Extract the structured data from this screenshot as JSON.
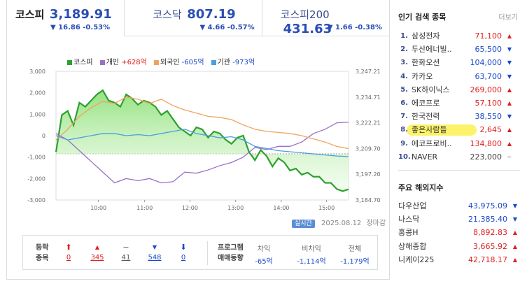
{
  "tabs": [
    {
      "name": "코스피",
      "value": "3,189.91",
      "change": "▼ 16.86 -0.53%",
      "active": true
    },
    {
      "name": "코스닥",
      "value": "807.19",
      "change": "▼ 4.66 -0.57%",
      "active": false
    },
    {
      "name": "코스피200",
      "value": "431.63",
      "change": "▼ 1.66 -0.38%",
      "active": false
    }
  ],
  "legend": {
    "kospi": "코스피",
    "individual_label": "개인",
    "individual_value": "+628억",
    "foreign_label": "외국인",
    "foreign_value": "-605억",
    "institution_label": "기관",
    "institution_value": "-973억"
  },
  "colors": {
    "kospi": "#2da12d",
    "individual": "#9a70c9",
    "foreign": "#f0a35e",
    "institution": "#4a9fe0",
    "up": "#e02020",
    "down": "#1a49c9"
  },
  "chart_data": {
    "type": "line",
    "x_ticks": [
      "10:00",
      "11:00",
      "12:00",
      "13:00",
      "14:00",
      "15:00"
    ],
    "left_ticks": [
      "3,000",
      "2,000",
      "1,000",
      "0",
      "-1,000",
      "-2,000",
      "-3,000"
    ],
    "right_ticks": [
      "3,247.21",
      "3,234.71",
      "3,222.21",
      "3,209.70",
      "3,197.20",
      "3,184.70"
    ],
    "ylim_left": [
      -3000,
      3000
    ],
    "ylim_right": [
      3184.7,
      3247.21
    ],
    "series": [
      {
        "name": "코스피",
        "axis": "right",
        "t": [
          0,
          2,
          4,
          6,
          8,
          10,
          12,
          14,
          16,
          18,
          20,
          22,
          24,
          26,
          28,
          30,
          32,
          34,
          36,
          38,
          40,
          42,
          44,
          46,
          48,
          50,
          52,
          54,
          56,
          58,
          60,
          62,
          64,
          66,
          68,
          70,
          72,
          74,
          76,
          78,
          80,
          82,
          84,
          86,
          88,
          90,
          92,
          94,
          96,
          98,
          100
        ],
        "values": [
          3208,
          3226,
          3228,
          3221,
          3232,
          3230,
          3233,
          3236,
          3238,
          3233,
          3232,
          3230,
          3236,
          3234,
          3231,
          3233,
          3232,
          3230,
          3226,
          3228,
          3224,
          3220,
          3218,
          3216,
          3220,
          3219,
          3215,
          3218,
          3217,
          3214,
          3212,
          3215,
          3216,
          3208,
          3204,
          3209,
          3206,
          3201,
          3205,
          3203,
          3199,
          3200,
          3197,
          3198,
          3196,
          3196,
          3193,
          3193,
          3190,
          3189,
          3189.91
        ]
      },
      {
        "name": "개인",
        "axis": "left",
        "t": [
          0,
          4,
          8,
          12,
          16,
          20,
          24,
          28,
          32,
          36,
          40,
          44,
          48,
          52,
          56,
          60,
          64,
          68,
          72,
          76,
          80,
          84,
          88,
          92,
          96,
          100
        ],
        "values": [
          100,
          -200,
          -700,
          -1200,
          -1700,
          -2200,
          -2000,
          -2100,
          -2000,
          -2200,
          -2150,
          -1700,
          -1750,
          -1600,
          -1400,
          -1250,
          -1000,
          -550,
          -650,
          -500,
          -500,
          -300,
          100,
          300,
          600,
          628
        ]
      },
      {
        "name": "외국인",
        "axis": "left",
        "t": [
          0,
          4,
          8,
          12,
          16,
          20,
          24,
          28,
          32,
          36,
          40,
          44,
          48,
          52,
          56,
          60,
          64,
          68,
          72,
          76,
          80,
          84,
          88,
          92,
          96,
          100
        ],
        "values": [
          -200,
          300,
          900,
          1300,
          1600,
          1500,
          1800,
          1700,
          1500,
          1700,
          1400,
          1200,
          1050,
          900,
          850,
          750,
          500,
          300,
          200,
          150,
          100,
          0,
          -150,
          -300,
          -500,
          -605
        ]
      },
      {
        "name": "기관",
        "axis": "left",
        "t": [
          0,
          4,
          8,
          12,
          16,
          20,
          24,
          28,
          32,
          36,
          40,
          44,
          48,
          52,
          56,
          60,
          64,
          68,
          72,
          76,
          80,
          84,
          88,
          92,
          96,
          100
        ],
        "values": [
          0,
          -200,
          -100,
          0,
          100,
          100,
          0,
          50,
          0,
          100,
          200,
          300,
          100,
          0,
          -100,
          -50,
          -200,
          -500,
          -600,
          -700,
          -750,
          -800,
          -850,
          -900,
          -950,
          -973
        ]
      }
    ]
  },
  "footer": {
    "realtime_button": "실시간",
    "date": "2025.08.12",
    "status": "장마감"
  },
  "updown": {
    "label_line1": "등락",
    "label_line2": "종목",
    "items": [
      {
        "icon": "⬆",
        "count": "0",
        "color": "#e02020"
      },
      {
        "icon": "▲",
        "count": "345",
        "color": "#e02020"
      },
      {
        "icon": "−",
        "count": "41",
        "color": "#555"
      },
      {
        "icon": "▼",
        "count": "548",
        "color": "#1a49c9"
      },
      {
        "icon": "⬇",
        "count": "0",
        "color": "#1a49c9"
      }
    ]
  },
  "program": {
    "label_line1": "프로그램",
    "label_line2": "매매동향",
    "cols": [
      {
        "header": "차익",
        "value": "-65억"
      },
      {
        "header": "비차익",
        "value": "-1,114억"
      },
      {
        "header": "전체",
        "value": "-1,179억"
      }
    ]
  },
  "popular": {
    "title": "인기 검색 종목",
    "more": "더보기",
    "items": [
      {
        "rank": "1.",
        "name": "삼성전자",
        "price": "71,100",
        "dir": "up"
      },
      {
        "rank": "2.",
        "name": "두산에너빌..",
        "price": "65,500",
        "dir": "down"
      },
      {
        "rank": "3.",
        "name": "한화오션",
        "price": "104,000",
        "dir": "down"
      },
      {
        "rank": "4.",
        "name": "카카오",
        "price": "63,700",
        "dir": "down"
      },
      {
        "rank": "5.",
        "name": "SK하이닉스",
        "price": "269,000",
        "dir": "up"
      },
      {
        "rank": "6.",
        "name": "에코프로",
        "price": "57,100",
        "dir": "up"
      },
      {
        "rank": "7.",
        "name": "한국전력",
        "price": "38,550",
        "dir": "down"
      },
      {
        "rank": "8.",
        "name": "좋은사람들",
        "price": "2,645",
        "dir": "up"
      },
      {
        "rank": "9.",
        "name": "에코프로비..",
        "price": "134,800",
        "dir": "up"
      },
      {
        "rank": "10.",
        "name": "NAVER",
        "price": "223,000",
        "dir": "flat"
      }
    ]
  },
  "overseas": {
    "title": "주요 해외지수",
    "items": [
      {
        "name": "다우산업",
        "price": "43,975.09",
        "dir": "down"
      },
      {
        "name": "나스닥",
        "price": "21,385.40",
        "dir": "down"
      },
      {
        "name": "홍콩H",
        "price": "8,892.83",
        "dir": "up"
      },
      {
        "name": "상해종합",
        "price": "3,665.92",
        "dir": "up"
      },
      {
        "name": "니케이225",
        "price": "42,718.17",
        "dir": "up"
      }
    ]
  }
}
